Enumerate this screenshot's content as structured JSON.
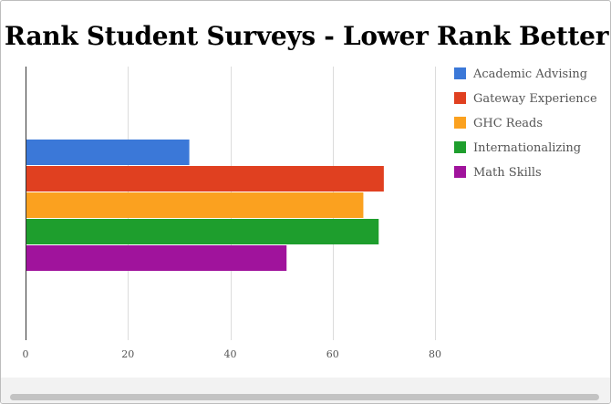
{
  "chart_data": {
    "type": "bar",
    "orientation": "horizontal",
    "title": "Rank Student Surveys - Lower Rank Better",
    "xlabel": "",
    "ylabel": "",
    "xlim": [
      0,
      80
    ],
    "x_ticks": [
      0,
      20,
      40,
      60,
      80
    ],
    "grid": true,
    "legend_position": "right",
    "series": [
      {
        "name": "Academic Advising",
        "value": 32,
        "color": "#3b78d8"
      },
      {
        "name": "Gateway Experience",
        "value": 70,
        "color": "#e04020"
      },
      {
        "name": "GHC Reads",
        "value": 66,
        "color": "#fba11f"
      },
      {
        "name": "Internationalizing",
        "value": 69,
        "color": "#1e9e2d"
      },
      {
        "name": "Math Skills",
        "value": 51,
        "color": "#a0139c"
      }
    ]
  }
}
